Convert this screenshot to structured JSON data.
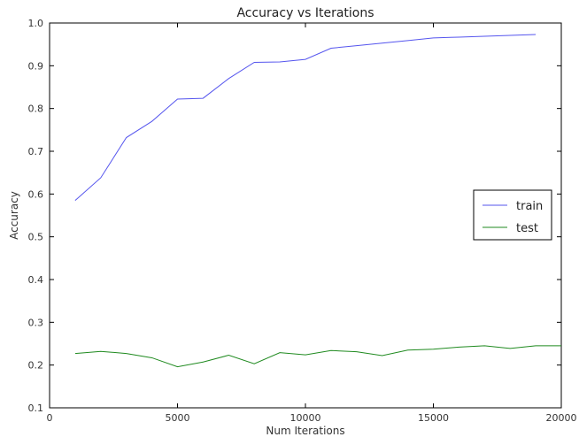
{
  "chart_data": {
    "type": "line",
    "title": "Accuracy vs Iterations",
    "xlabel": "Num Iterations",
    "ylabel": "Accuracy",
    "xlim": [
      0,
      20000
    ],
    "ylim": [
      0.1,
      1.0
    ],
    "xticks": [
      0,
      5000,
      10000,
      15000,
      20000
    ],
    "yticks": [
      0.1,
      0.2,
      0.3,
      0.4,
      0.5,
      0.6,
      0.7,
      0.8,
      0.9,
      1.0
    ],
    "ytick_labels": [
      "0.1",
      "0.2",
      "0.3",
      "0.4",
      "0.5",
      "0.6",
      "0.7",
      "0.8",
      "0.9",
      "1.0"
    ],
    "grid": false,
    "legend_position": "center-right",
    "series": [
      {
        "name": "train",
        "color": "#5555ee",
        "x": [
          1000,
          2000,
          3000,
          4000,
          5000,
          6000,
          7000,
          8000,
          9000,
          10000,
          11000,
          12000,
          13000,
          14000,
          15000,
          16000,
          17000,
          18000,
          19000
        ],
        "y": [
          0.585,
          0.638,
          0.732,
          0.77,
          0.822,
          0.824,
          0.87,
          0.908,
          0.909,
          0.915,
          0.941,
          0.947,
          0.953,
          0.959,
          0.965,
          0.967,
          0.969,
          0.971,
          0.973
        ]
      },
      {
        "name": "test",
        "color": "#1f8a1f",
        "x": [
          1000,
          2000,
          3000,
          4000,
          5000,
          6000,
          7000,
          8000,
          9000,
          10000,
          11000,
          12000,
          13000,
          14000,
          15000,
          16000,
          17000,
          18000,
          19000,
          20000
        ],
        "y": [
          0.227,
          0.232,
          0.227,
          0.217,
          0.196,
          0.207,
          0.223,
          0.203,
          0.229,
          0.224,
          0.234,
          0.231,
          0.222,
          0.235,
          0.237,
          0.242,
          0.245,
          0.239,
          0.245,
          0.245
        ]
      }
    ]
  }
}
